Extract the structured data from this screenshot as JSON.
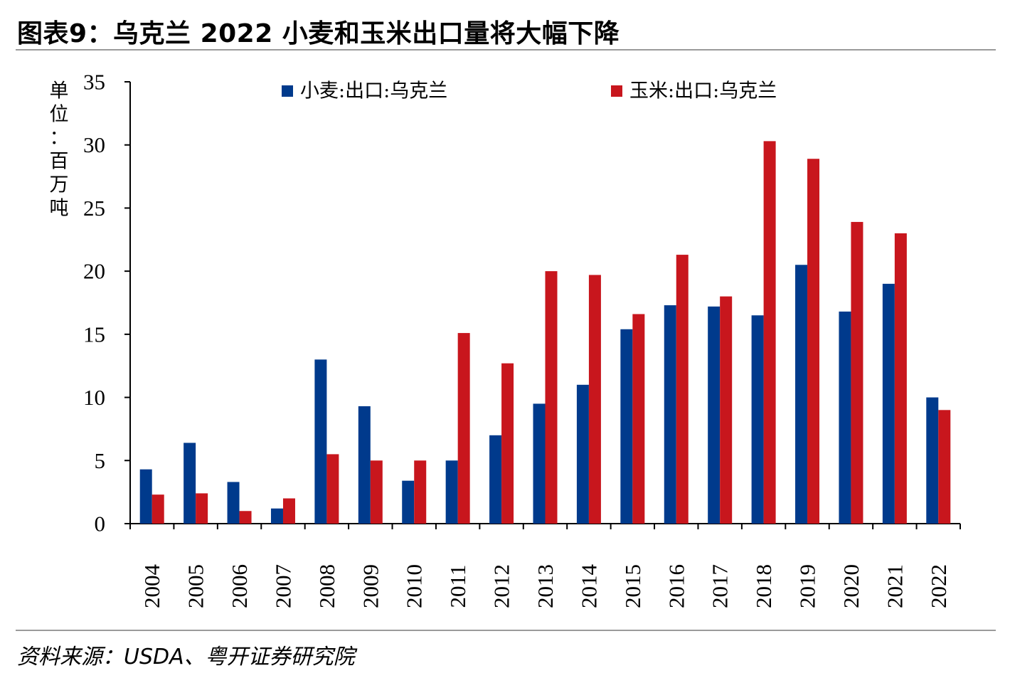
{
  "title": "图表9：乌克兰 2022 小麦和玉米出口量将大幅下降",
  "source": "资料来源：USDA、粤开证券研究院",
  "chart_data": {
    "type": "bar",
    "unit_label": [
      "单",
      "位",
      "：",
      "百",
      "万",
      "吨"
    ],
    "categories": [
      "2004",
      "2005",
      "2006",
      "2007",
      "2008",
      "2009",
      "2010",
      "2011",
      "2012",
      "2013",
      "2014",
      "2015",
      "2016",
      "2017",
      "2018",
      "2019",
      "2020",
      "2021",
      "2022"
    ],
    "series": [
      {
        "name": "小麦:出口:乌克兰",
        "color": "#003a8c",
        "values": [
          4.3,
          6.4,
          3.3,
          1.2,
          13.0,
          9.3,
          3.4,
          5.0,
          7.0,
          9.5,
          11.0,
          15.4,
          17.3,
          17.2,
          16.5,
          20.5,
          16.8,
          19.0,
          10.0
        ]
      },
      {
        "name": "玉米:出口:乌克兰",
        "color": "#c8161d",
        "values": [
          2.3,
          2.4,
          1.0,
          2.0,
          5.5,
          5.0,
          5.0,
          15.1,
          12.7,
          20.0,
          19.7,
          16.6,
          21.3,
          18.0,
          30.3,
          28.9,
          23.9,
          23.0,
          9.0
        ]
      }
    ],
    "ylim": [
      0,
      35
    ],
    "yticks": [
      "0",
      "5",
      "10",
      "15",
      "20",
      "25",
      "30",
      "35"
    ],
    "legend_position": "top",
    "grid": false
  }
}
